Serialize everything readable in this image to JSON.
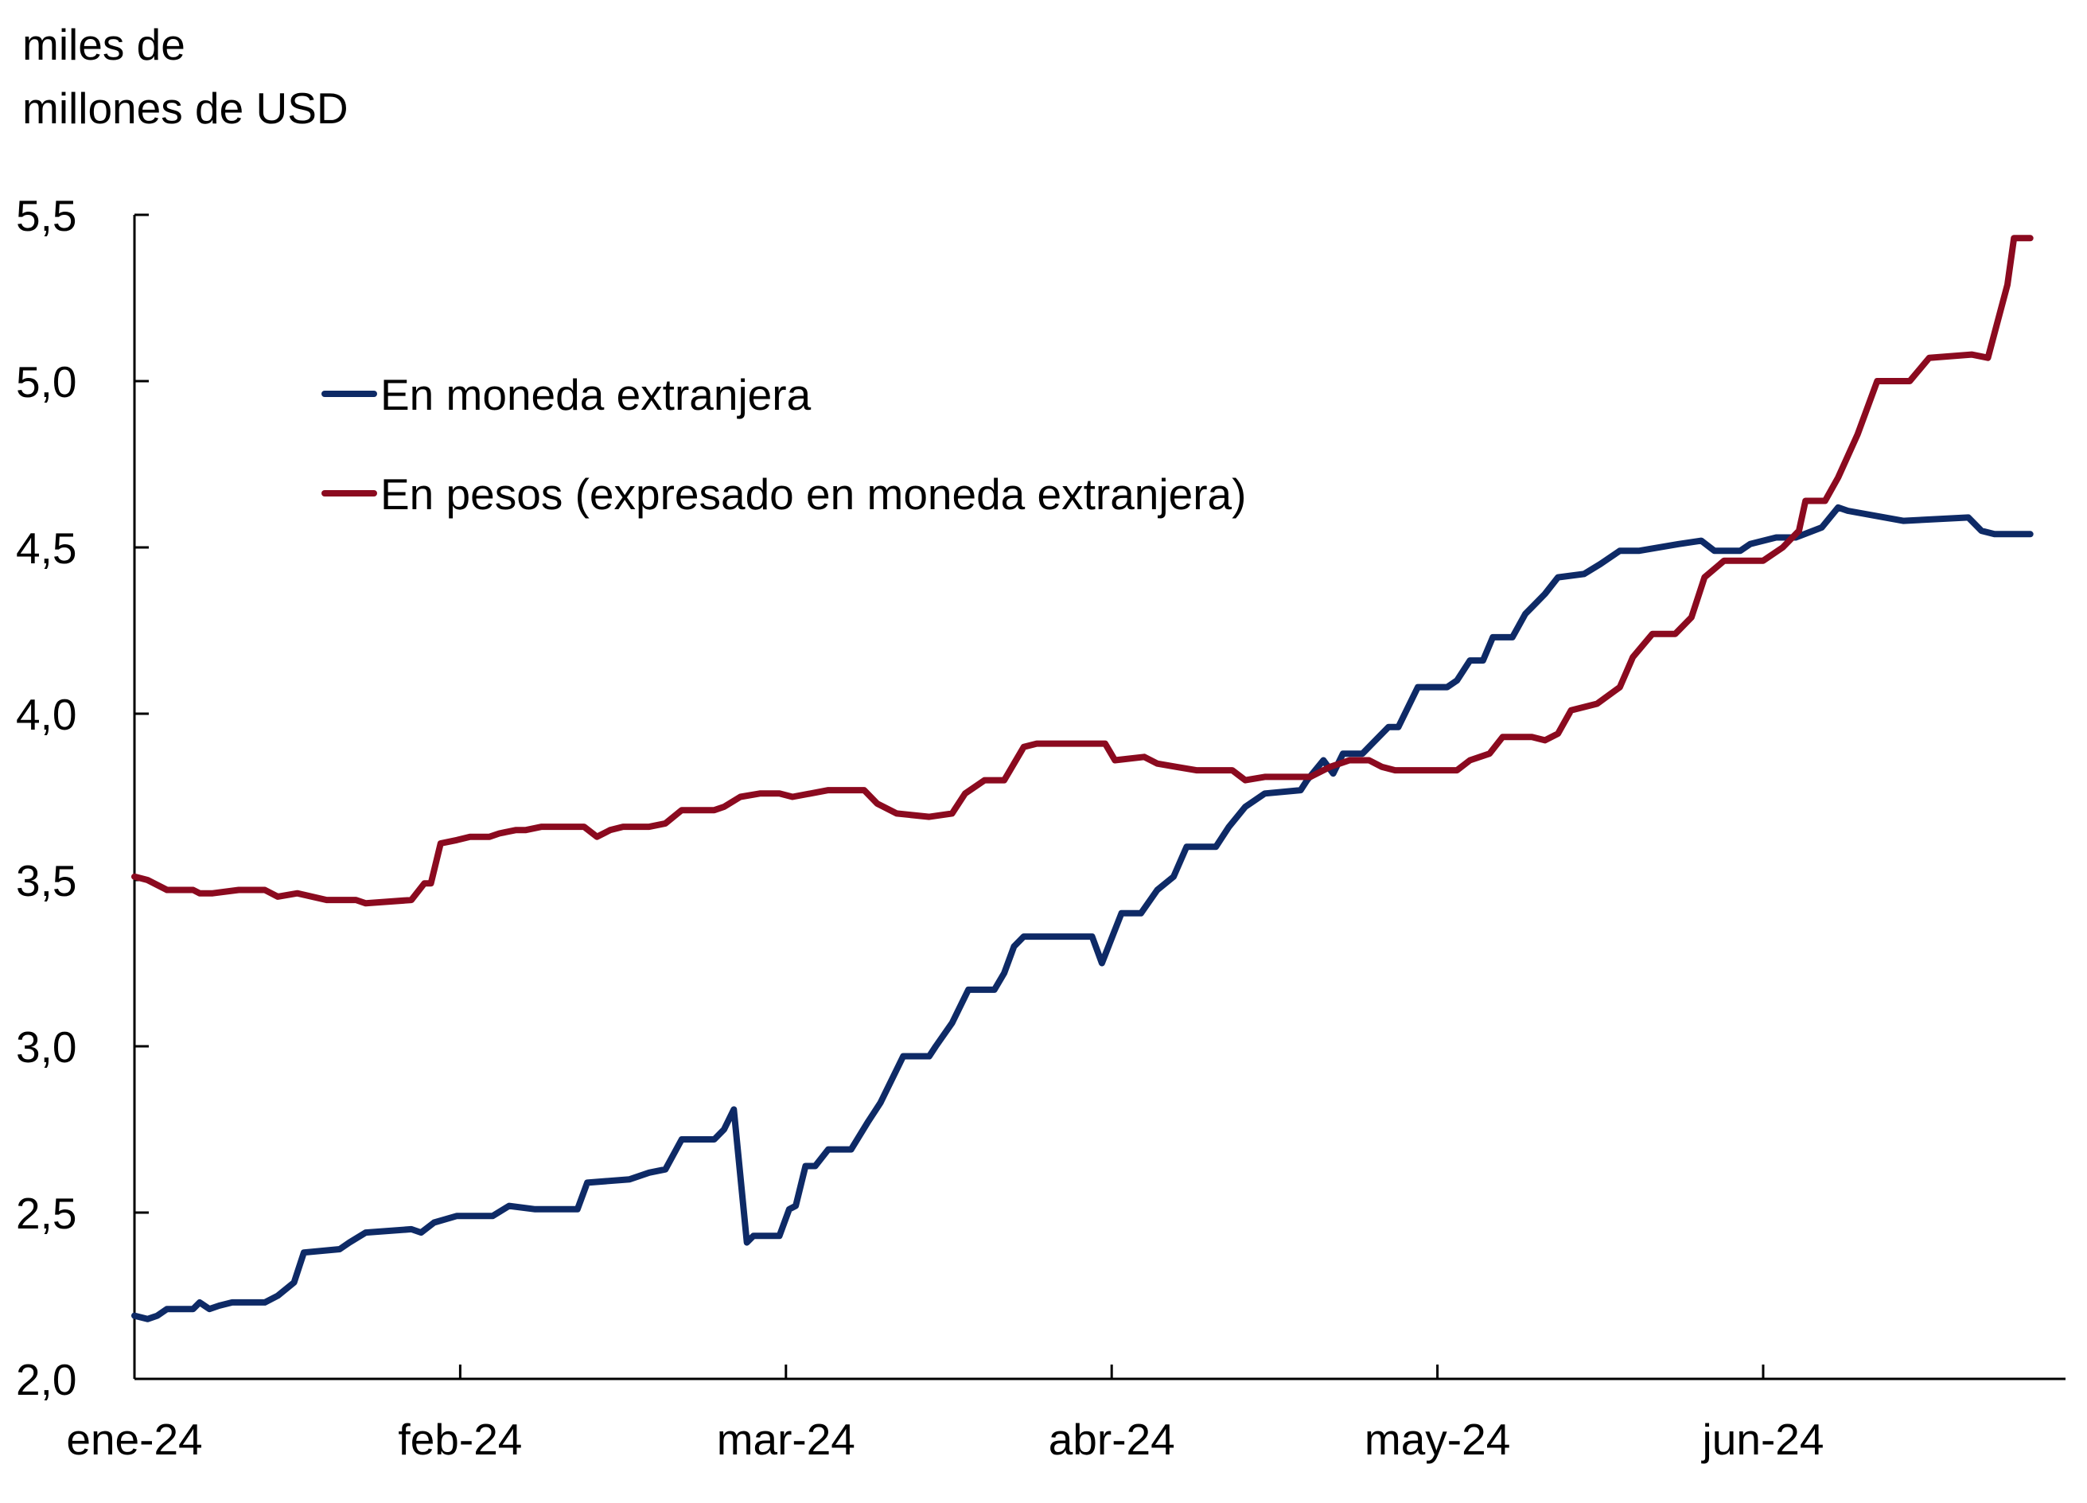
{
  "chart_data": {
    "type": "line",
    "title": "",
    "ylabel_lines": [
      "miles de",
      "millones de USD"
    ],
    "xlabel": "",
    "ylim": [
      2.0,
      5.5
    ],
    "yticks": [
      2.0,
      2.5,
      3.0,
      3.5,
      4.0,
      4.5,
      5.0,
      5.5
    ],
    "ytick_labels": [
      "2,0",
      "2,5",
      "3,0",
      "3,5",
      "4,0",
      "4,5",
      "5,0",
      "5,5"
    ],
    "xlim": [
      0,
      5.82
    ],
    "xticks": [
      0,
      1,
      2,
      3,
      4,
      5
    ],
    "xtick_labels": [
      "ene-24",
      "feb-24",
      "mar-24",
      "abr-24",
      "may-24",
      "jun-24"
    ],
    "x_units": "months since ene-24",
    "grid": false,
    "legend_position": "upper-left (inside)",
    "series": [
      {
        "name": "En moneda extranjera",
        "color": "#0E2A66",
        "points": [
          [
            0.0,
            2.19
          ],
          [
            0.04,
            2.18
          ],
          [
            0.07,
            2.19
          ],
          [
            0.1,
            2.21
          ],
          [
            0.18,
            2.21
          ],
          [
            0.2,
            2.23
          ],
          [
            0.23,
            2.21
          ],
          [
            0.26,
            2.22
          ],
          [
            0.3,
            2.23
          ],
          [
            0.4,
            2.23
          ],
          [
            0.44,
            2.25
          ],
          [
            0.49,
            2.29
          ],
          [
            0.52,
            2.38
          ],
          [
            0.63,
            2.39
          ],
          [
            0.66,
            2.41
          ],
          [
            0.71,
            2.44
          ],
          [
            0.85,
            2.45
          ],
          [
            0.88,
            2.44
          ],
          [
            0.92,
            2.47
          ],
          [
            0.99,
            2.49
          ],
          [
            1.1,
            2.49
          ],
          [
            1.15,
            2.52
          ],
          [
            1.23,
            2.51
          ],
          [
            1.36,
            2.51
          ],
          [
            1.39,
            2.59
          ],
          [
            1.52,
            2.6
          ],
          [
            1.58,
            2.62
          ],
          [
            1.63,
            2.63
          ],
          [
            1.68,
            2.72
          ],
          [
            1.78,
            2.72
          ],
          [
            1.81,
            2.75
          ],
          [
            1.84,
            2.81
          ],
          [
            1.88,
            2.41
          ],
          [
            1.9,
            2.43
          ],
          [
            1.98,
            2.43
          ],
          [
            2.01,
            2.51
          ],
          [
            2.03,
            2.52
          ],
          [
            2.06,
            2.64
          ],
          [
            2.09,
            2.64
          ],
          [
            2.13,
            2.69
          ],
          [
            2.2,
            2.69
          ],
          [
            2.25,
            2.77
          ],
          [
            2.29,
            2.83
          ],
          [
            2.36,
            2.97
          ],
          [
            2.44,
            2.97
          ],
          [
            2.46,
            3.0
          ],
          [
            2.51,
            3.07
          ],
          [
            2.56,
            3.17
          ],
          [
            2.64,
            3.17
          ],
          [
            2.67,
            3.22
          ],
          [
            2.7,
            3.3
          ],
          [
            2.73,
            3.33
          ],
          [
            2.94,
            3.33
          ],
          [
            2.97,
            3.25
          ],
          [
            3.03,
            3.4
          ],
          [
            3.09,
            3.4
          ],
          [
            3.14,
            3.47
          ],
          [
            3.19,
            3.51
          ],
          [
            3.23,
            3.6
          ],
          [
            3.32,
            3.6
          ],
          [
            3.36,
            3.66
          ],
          [
            3.41,
            3.72
          ],
          [
            3.47,
            3.76
          ],
          [
            3.58,
            3.77
          ],
          [
            3.6,
            3.8
          ],
          [
            3.65,
            3.86
          ],
          [
            3.68,
            3.82
          ],
          [
            3.71,
            3.88
          ],
          [
            3.77,
            3.88
          ],
          [
            3.8,
            3.91
          ],
          [
            3.85,
            3.96
          ],
          [
            3.88,
            3.96
          ],
          [
            3.94,
            4.08
          ],
          [
            4.03,
            4.08
          ],
          [
            4.06,
            4.1
          ],
          [
            4.1,
            4.16
          ],
          [
            4.14,
            4.16
          ],
          [
            4.17,
            4.23
          ],
          [
            4.23,
            4.23
          ],
          [
            4.27,
            4.3
          ],
          [
            4.33,
            4.36
          ],
          [
            4.37,
            4.41
          ],
          [
            4.45,
            4.42
          ],
          [
            4.5,
            4.45
          ],
          [
            4.56,
            4.49
          ],
          [
            4.62,
            4.49
          ],
          [
            4.74,
            4.51
          ],
          [
            4.81,
            4.52
          ],
          [
            4.85,
            4.49
          ],
          [
            4.93,
            4.49
          ],
          [
            4.96,
            4.51
          ],
          [
            5.04,
            4.53
          ],
          [
            5.1,
            4.53
          ],
          [
            5.18,
            4.56
          ],
          [
            5.23,
            4.62
          ],
          [
            5.26,
            4.61
          ],
          [
            5.43,
            4.58
          ],
          [
            5.63,
            4.59
          ],
          [
            5.67,
            4.55
          ],
          [
            5.71,
            4.54
          ],
          [
            5.82,
            4.54
          ]
        ]
      },
      {
        "name": "En pesos (expresado en moneda extranjera)",
        "color": "#8B0A1F",
        "points": [
          [
            0.0,
            3.51
          ],
          [
            0.04,
            3.5
          ],
          [
            0.1,
            3.47
          ],
          [
            0.18,
            3.47
          ],
          [
            0.2,
            3.46
          ],
          [
            0.24,
            3.46
          ],
          [
            0.32,
            3.47
          ],
          [
            0.4,
            3.47
          ],
          [
            0.44,
            3.45
          ],
          [
            0.5,
            3.46
          ],
          [
            0.59,
            3.44
          ],
          [
            0.68,
            3.44
          ],
          [
            0.71,
            3.43
          ],
          [
            0.85,
            3.44
          ],
          [
            0.89,
            3.49
          ],
          [
            0.91,
            3.49
          ],
          [
            0.94,
            3.61
          ],
          [
            0.99,
            3.62
          ],
          [
            1.03,
            3.63
          ],
          [
            1.09,
            3.63
          ],
          [
            1.12,
            3.64
          ],
          [
            1.17,
            3.65
          ],
          [
            1.2,
            3.65
          ],
          [
            1.25,
            3.66
          ],
          [
            1.38,
            3.66
          ],
          [
            1.42,
            3.63
          ],
          [
            1.46,
            3.65
          ],
          [
            1.5,
            3.66
          ],
          [
            1.58,
            3.66
          ],
          [
            1.63,
            3.67
          ],
          [
            1.68,
            3.71
          ],
          [
            1.78,
            3.71
          ],
          [
            1.81,
            3.72
          ],
          [
            1.86,
            3.75
          ],
          [
            1.92,
            3.76
          ],
          [
            1.98,
            3.76
          ],
          [
            2.02,
            3.75
          ],
          [
            2.13,
            3.77
          ],
          [
            2.24,
            3.77
          ],
          [
            2.28,
            3.73
          ],
          [
            2.34,
            3.7
          ],
          [
            2.44,
            3.69
          ],
          [
            2.51,
            3.7
          ],
          [
            2.55,
            3.76
          ],
          [
            2.61,
            3.8
          ],
          [
            2.67,
            3.8
          ],
          [
            2.73,
            3.9
          ],
          [
            2.77,
            3.91
          ],
          [
            2.98,
            3.91
          ],
          [
            3.01,
            3.86
          ],
          [
            3.1,
            3.87
          ],
          [
            3.14,
            3.85
          ],
          [
            3.2,
            3.84
          ],
          [
            3.26,
            3.83
          ],
          [
            3.37,
            3.83
          ],
          [
            3.41,
            3.8
          ],
          [
            3.47,
            3.81
          ],
          [
            3.61,
            3.81
          ],
          [
            3.67,
            3.84
          ],
          [
            3.73,
            3.86
          ],
          [
            3.79,
            3.86
          ],
          [
            3.83,
            3.84
          ],
          [
            3.87,
            3.83
          ],
          [
            3.95,
            3.83
          ],
          [
            4.06,
            3.83
          ],
          [
            4.1,
            3.86
          ],
          [
            4.16,
            3.88
          ],
          [
            4.2,
            3.93
          ],
          [
            4.29,
            3.93
          ],
          [
            4.33,
            3.92
          ],
          [
            4.37,
            3.94
          ],
          [
            4.41,
            4.01
          ],
          [
            4.49,
            4.03
          ],
          [
            4.56,
            4.08
          ],
          [
            4.6,
            4.17
          ],
          [
            4.66,
            4.24
          ],
          [
            4.73,
            4.24
          ],
          [
            4.78,
            4.29
          ],
          [
            4.82,
            4.41
          ],
          [
            4.88,
            4.46
          ],
          [
            4.98,
            4.46
          ],
          [
            5.0,
            4.46
          ],
          [
            5.06,
            4.5
          ],
          [
            5.11,
            4.55
          ],
          [
            5.13,
            4.64
          ],
          [
            5.19,
            4.64
          ],
          [
            5.23,
            4.71
          ],
          [
            5.29,
            4.84
          ],
          [
            5.35,
            5.0
          ],
          [
            5.45,
            5.0
          ],
          [
            5.51,
            5.07
          ],
          [
            5.64,
            5.08
          ],
          [
            5.69,
            5.07
          ],
          [
            5.75,
            5.29
          ],
          [
            5.77,
            5.43
          ],
          [
            5.82,
            5.43
          ]
        ]
      }
    ]
  }
}
